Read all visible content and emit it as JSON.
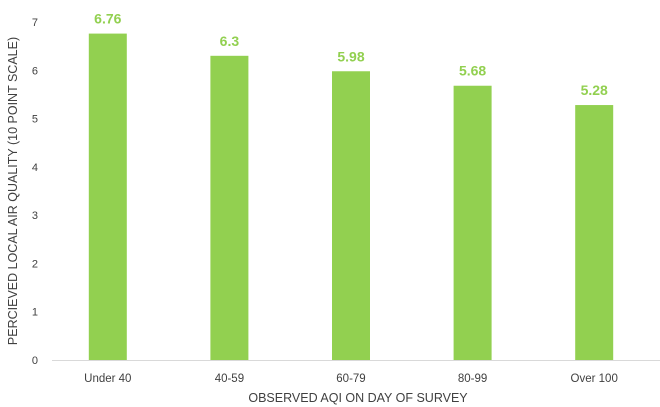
{
  "chart_data": {
    "type": "bar",
    "title": "",
    "xlabel": "OBSERVED AQI ON DAY OF SURVEY",
    "ylabel": "PERCIEVED LOCAL AIR QUALITY (10 POINT SCALE)",
    "categories": [
      "Under 40",
      "40-59",
      "60-79",
      "80-99",
      "Over 100"
    ],
    "values": [
      6.76,
      6.3,
      5.98,
      5.68,
      5.28
    ],
    "data_labels": [
      "6.76",
      "6.3",
      "5.98",
      "5.68",
      "5.28"
    ],
    "y_ticks": [
      "0",
      "1",
      "2",
      "3",
      "4",
      "5",
      "6",
      "7"
    ],
    "ylim": [
      0,
      7
    ],
    "grid": false,
    "legend": "none",
    "colors": {
      "bar": "#92d050",
      "label": "#92d050",
      "axis": "#d9d9d9",
      "text": "#404040"
    }
  }
}
